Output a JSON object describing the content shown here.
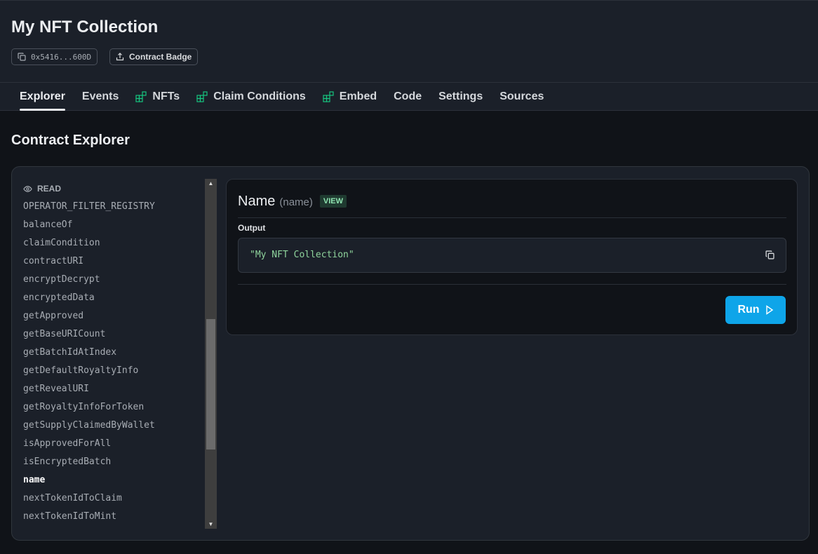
{
  "header": {
    "title": "My NFT Collection",
    "address": "0x5416...600D",
    "badge_label": "Contract Badge"
  },
  "tabs": [
    {
      "label": "Explorer",
      "icon": null,
      "active": true
    },
    {
      "label": "Events",
      "icon": null
    },
    {
      "label": "NFTs",
      "icon": "extension-blocks-icon"
    },
    {
      "label": "Claim Conditions",
      "icon": "extension-blocks-icon"
    },
    {
      "label": "Embed",
      "icon": "extension-blocks-icon"
    },
    {
      "label": "Code",
      "icon": null
    },
    {
      "label": "Settings",
      "icon": null
    },
    {
      "label": "Sources",
      "icon": null
    }
  ],
  "section_title": "Contract Explorer",
  "functions": {
    "read_label": "READ",
    "items": [
      "OPERATOR_FILTER_REGISTRY",
      "balanceOf",
      "claimCondition",
      "contractURI",
      "encryptDecrypt",
      "encryptedData",
      "getApproved",
      "getBaseURICount",
      "getBatchIdAtIndex",
      "getDefaultRoyaltyInfo",
      "getRevealURI",
      "getRoyaltyInfoForToken",
      "getSupplyClaimedByWallet",
      "isApprovedForAll",
      "isEncryptedBatch",
      "name",
      "nextTokenIdToClaim",
      "nextTokenIdToMint"
    ],
    "selected": "name"
  },
  "panel": {
    "name": "Name",
    "signature": "(name)",
    "badge": "VIEW",
    "output_label": "Output",
    "output_value": "\"My NFT Collection\"",
    "run_label": "Run"
  },
  "colors": {
    "accent": "#0ea5e9",
    "extension": "#16c47f",
    "output_text": "#8fd49c"
  }
}
